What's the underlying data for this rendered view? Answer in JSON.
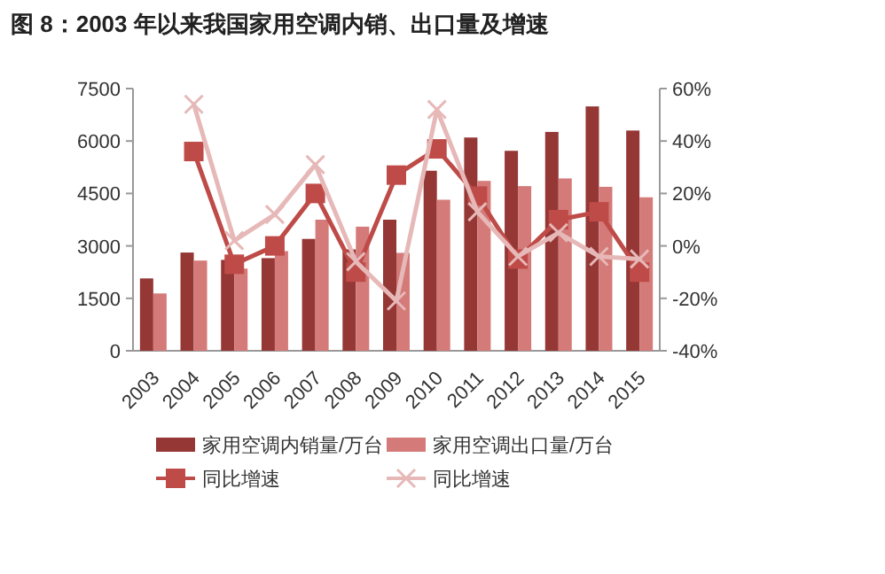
{
  "chart_data": {
    "type": "bar",
    "title": "图 8：2003 年以来我国家用空调内销、出口量及增速",
    "categories": [
      "2003",
      "2004",
      "2005",
      "2006",
      "2007",
      "2008",
      "2009",
      "2010",
      "2011",
      "2012",
      "2013",
      "2014",
      "2015"
    ],
    "series": [
      {
        "name": "家用空调内销量/万台",
        "color": "#953735",
        "values": [
          2070,
          2810,
          2600,
          2650,
          3200,
          2900,
          3750,
          5150,
          6100,
          5720,
          6260,
          6990,
          6300
        ]
      },
      {
        "name": "家用空调出口量/万台",
        "color": "#d47a78",
        "values": [
          1640,
          2580,
          2350,
          2850,
          3750,
          3550,
          2800,
          4320,
          4860,
          4710,
          4930,
          4690,
          4390
        ]
      },
      {
        "name": "同比增速",
        "type": "line",
        "axis": "y2",
        "marker": "square",
        "color": "#be4b48",
        "values": [
          null,
          36,
          -7,
          0,
          20,
          -10,
          27,
          37,
          19,
          -5,
          10,
          13,
          -10
        ]
      },
      {
        "name": "同比增速",
        "type": "line",
        "axis": "y2",
        "marker": "cross",
        "color": "#e6b9b8",
        "values": [
          null,
          54,
          2,
          12,
          31,
          -6,
          -21,
          52,
          13,
          -4,
          5,
          -4,
          -5
        ]
      }
    ],
    "ylim": [
      0,
      7500
    ],
    "yticks": [
      0,
      1500,
      3000,
      4500,
      6000,
      7500
    ],
    "y2lim": [
      -40,
      60
    ],
    "y2ticks": [
      {
        "value": -40,
        "label": "-40%"
      },
      {
        "value": -20,
        "label": "-20%"
      },
      {
        "value": 0,
        "label": "0%"
      },
      {
        "value": 20,
        "label": "20%"
      },
      {
        "value": 40,
        "label": "40%"
      },
      {
        "value": 60,
        "label": "60%"
      }
    ],
    "legend": "bottom",
    "grid": false
  }
}
